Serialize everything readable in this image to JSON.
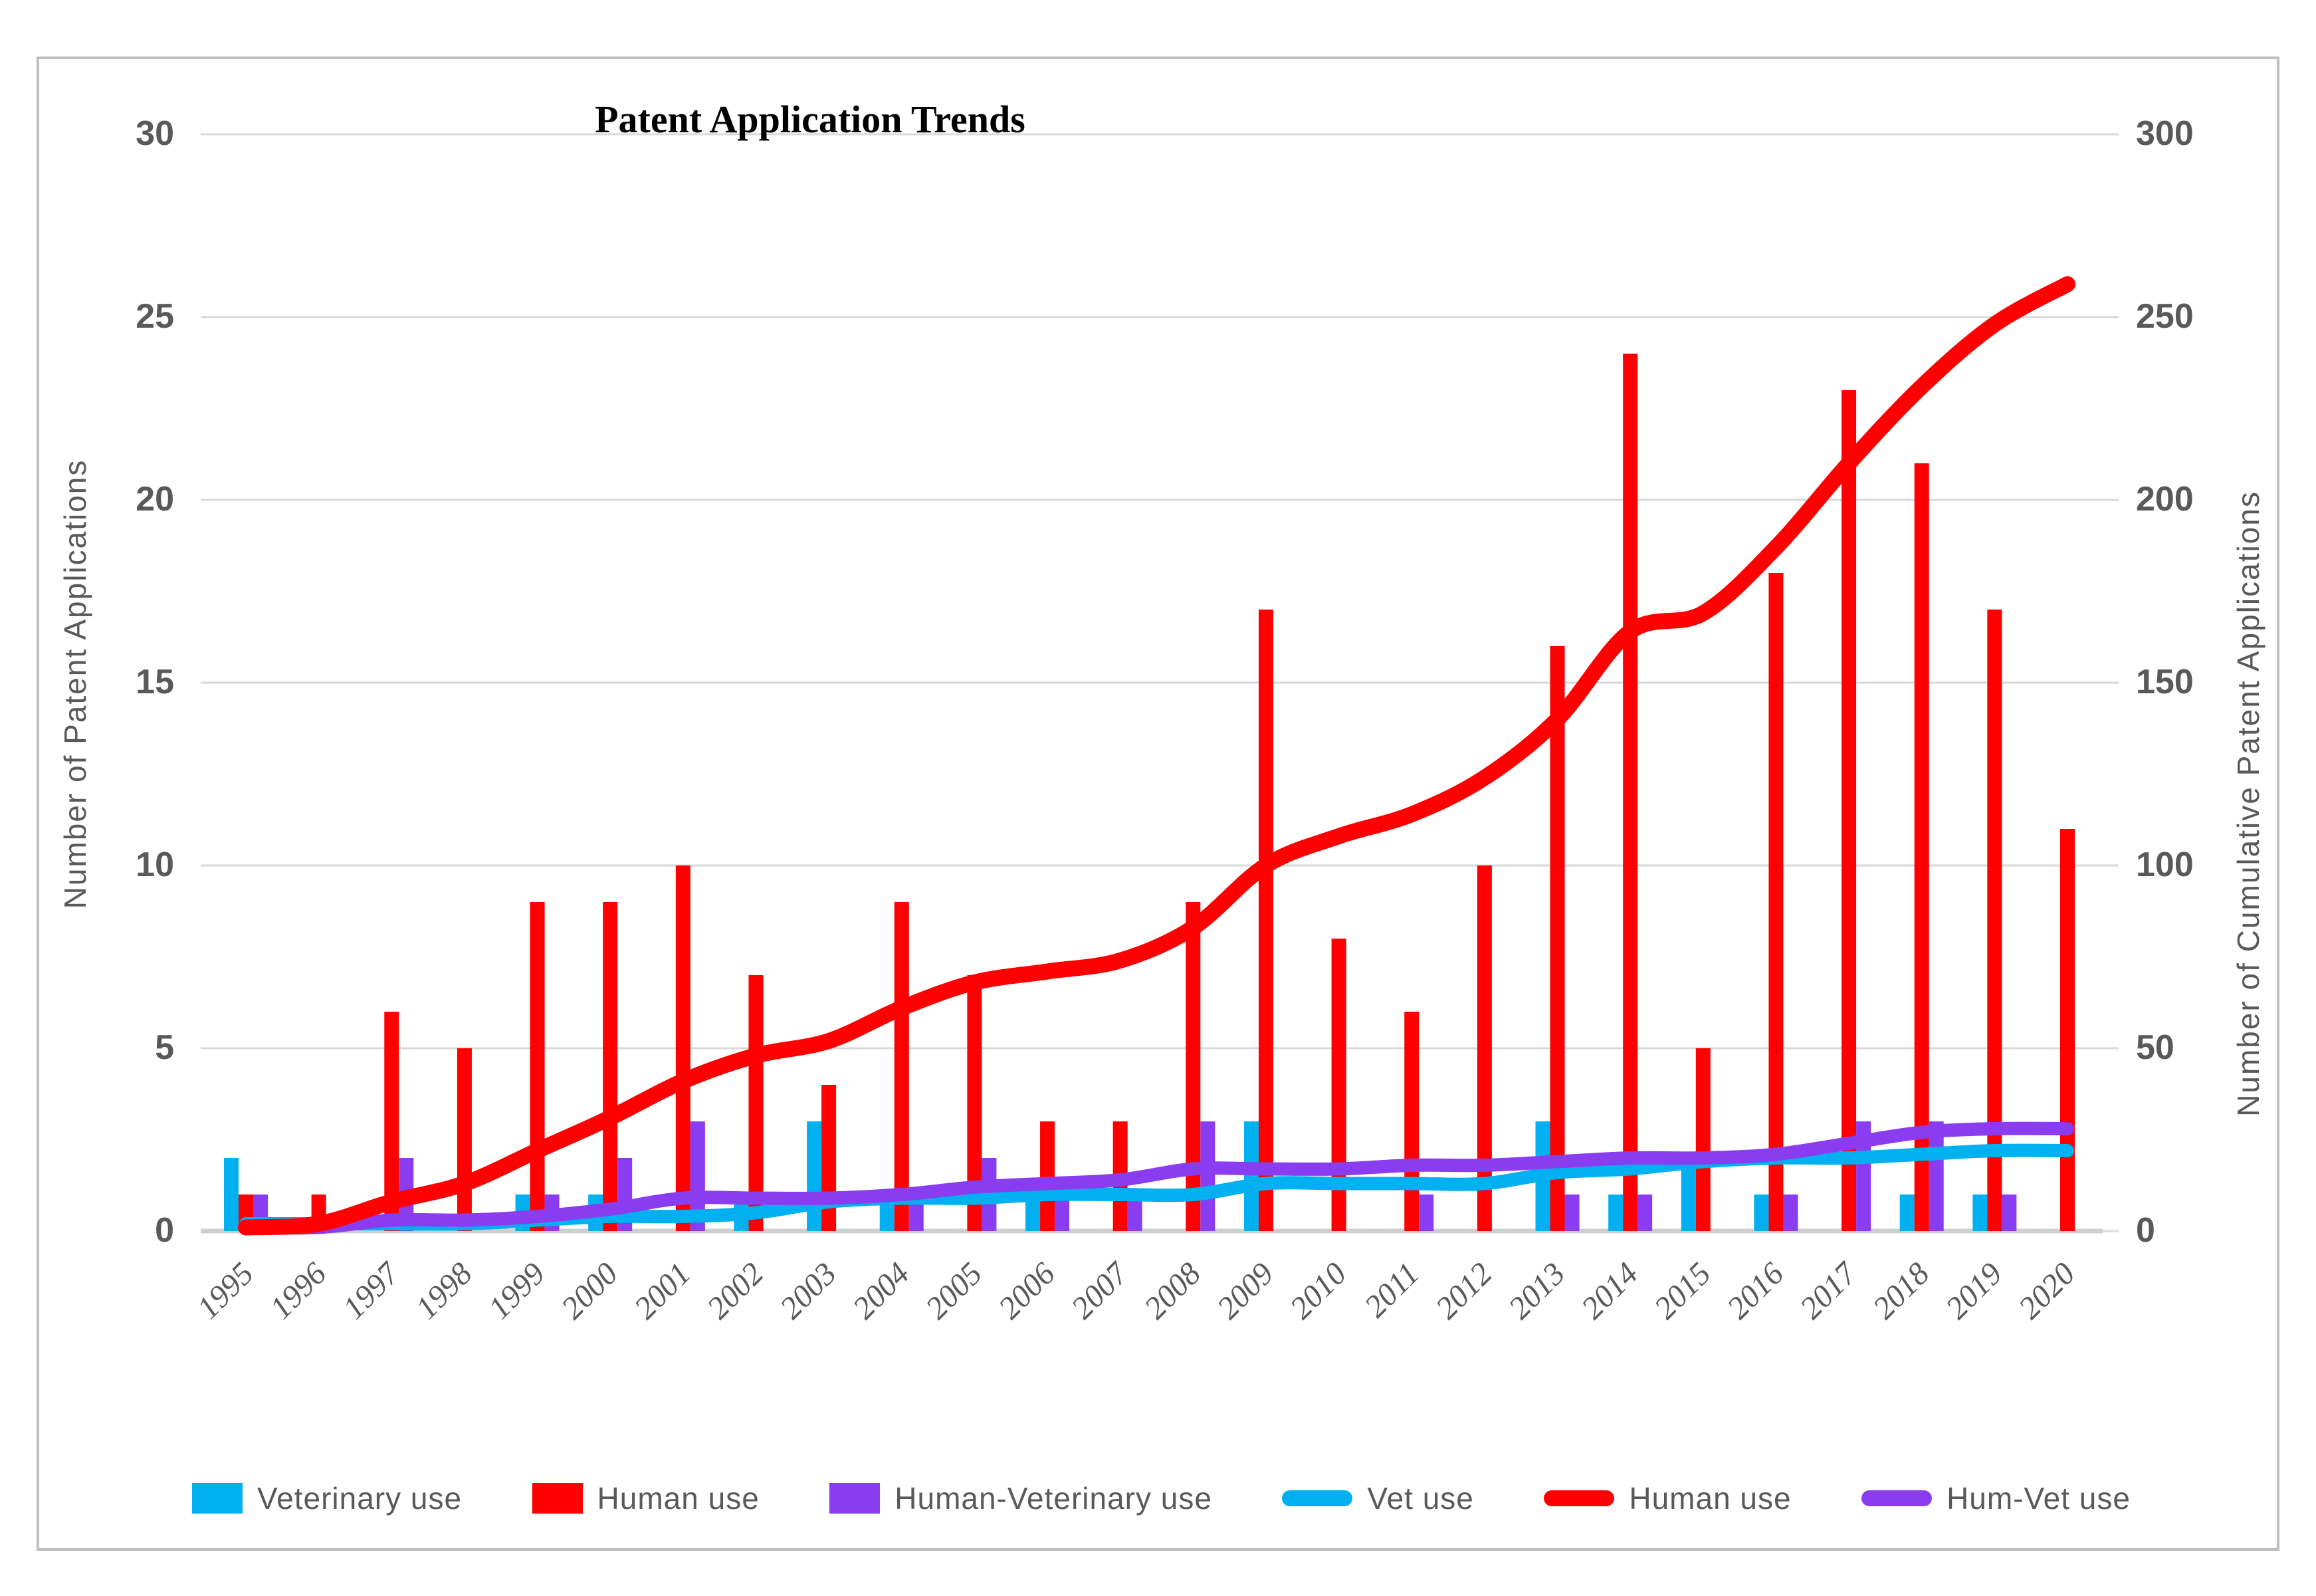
{
  "chart_data": {
    "type": "combo-bar-line",
    "title": "Patent Application Trends",
    "categories": [
      1995,
      1996,
      1997,
      1998,
      1999,
      2000,
      2001,
      2002,
      2003,
      2004,
      2005,
      2006,
      2007,
      2008,
      2009,
      2010,
      2011,
      2012,
      2013,
      2014,
      2015,
      2016,
      2017,
      2018,
      2019,
      2020
    ],
    "bar_series": [
      {
        "name": "Veterinary use",
        "color_key": "vet",
        "values": [
          2,
          0,
          0,
          0,
          1,
          1,
          0,
          1,
          3,
          1,
          0,
          1,
          0,
          0,
          3,
          0,
          0,
          0,
          3,
          1,
          2,
          1,
          0,
          1,
          1,
          0
        ]
      },
      {
        "name": "Human use",
        "color_key": "human",
        "values": [
          1,
          1,
          6,
          5,
          9,
          9,
          10,
          7,
          4,
          9,
          7,
          3,
          3,
          9,
          17,
          8,
          6,
          10,
          16,
          24,
          5,
          18,
          23,
          21,
          17,
          11
        ]
      },
      {
        "name": "Human-Veterinary use",
        "color_key": "humvet",
        "values": [
          1,
          0,
          2,
          0,
          1,
          2,
          3,
          0,
          0,
          1,
          2,
          1,
          1,
          3,
          0,
          0,
          1,
          0,
          1,
          1,
          0,
          1,
          3,
          3,
          1,
          0
        ]
      }
    ],
    "line_series": [
      {
        "name": "Vet use",
        "color_key": "vet",
        "axis": "right",
        "width": 20,
        "values": [
          2,
          2,
          2,
          2,
          3,
          4,
          4,
          5,
          8,
          9,
          9,
          10,
          10,
          10,
          13,
          13,
          13,
          13,
          16,
          17,
          19,
          20,
          20,
          21,
          22,
          22
        ]
      },
      {
        "name": "Hum-Vet use",
        "color_key": "humvet",
        "axis": "right",
        "width": 20,
        "values": [
          1,
          1,
          3,
          3,
          4,
          6,
          9,
          9,
          9,
          10,
          12,
          13,
          14,
          17,
          17,
          17,
          18,
          18,
          19,
          20,
          20,
          21,
          24,
          27,
          28,
          28
        ]
      },
      {
        "name": "Human use",
        "color_key": "human",
        "axis": "right",
        "width": 24,
        "values": [
          1,
          2,
          8,
          13,
          22,
          31,
          41,
          48,
          52,
          61,
          68,
          71,
          74,
          83,
          100,
          108,
          114,
          124,
          140,
          164,
          169,
          187,
          210,
          231,
          248,
          259
        ]
      }
    ],
    "left_axis": {
      "label": "Number of Patent Applications",
      "min": 0,
      "max": 30,
      "step": 5,
      "ticks": [
        "0",
        "5",
        "10",
        "15",
        "20",
        "25",
        "30"
      ]
    },
    "right_axis": {
      "label": "Number of Cumulative Patent Applications",
      "min": 0,
      "max": 300,
      "step": 50,
      "ticks": [
        "0",
        "50",
        "100",
        "150",
        "200",
        "250",
        "300"
      ]
    },
    "grid": true,
    "legend_position": "bottom"
  },
  "legend": {
    "items": [
      {
        "label": "Veterinary use",
        "marker": "bar",
        "color_key": "vet"
      },
      {
        "label": "Human use",
        "marker": "bar",
        "color_key": "human"
      },
      {
        "label": "Human-Veterinary use",
        "marker": "bar",
        "color_key": "humvet"
      },
      {
        "label": "Vet use",
        "marker": "line",
        "color_key": "vet"
      },
      {
        "label": "Human use",
        "marker": "line",
        "color_key": "human"
      },
      {
        "label": "Hum-Vet use",
        "marker": "line",
        "color_key": "humvet"
      }
    ]
  },
  "colors": {
    "vet": "#00B0F0",
    "human": "#FF0000",
    "humvet": "#8A3CF0",
    "grid": "#D9D9D9",
    "baseline": "#CFCFCF",
    "axis_text": "#595959",
    "title_text": "#000000",
    "frame_border": "#BFBFBF"
  }
}
